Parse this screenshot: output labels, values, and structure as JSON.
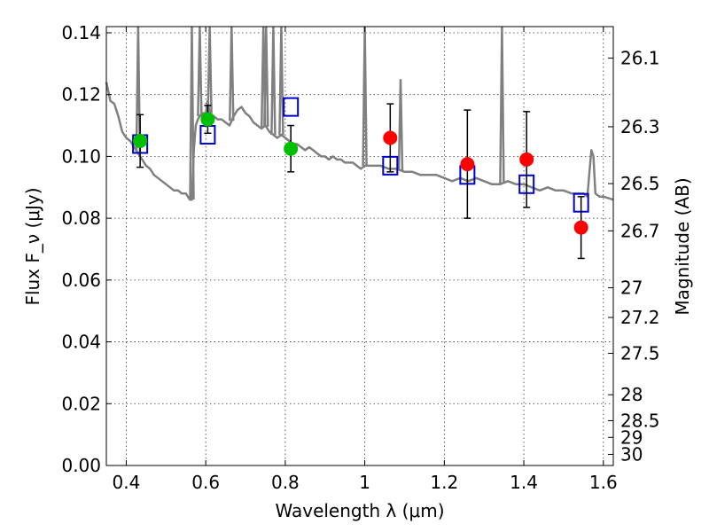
{
  "chart_data": {
    "type": "scatter",
    "xlabel": "Wavelength λ (μm)",
    "ylabel": "Flux F_ν (μJy)",
    "y2label": "Magnitude (AB)",
    "xlim": [
      0.35,
      1.625
    ],
    "ylim": [
      0.0,
      0.142
    ],
    "grid": true,
    "x_ticks": [
      0.4,
      0.6,
      0.8,
      1.0,
      1.2,
      1.4,
      1.6
    ],
    "x_tick_labels": [
      "0.4",
      "0.6",
      "0.8",
      "1",
      "1.2",
      "1.4",
      "1.6"
    ],
    "y_ticks": [
      0.0,
      0.02,
      0.04,
      0.06,
      0.08,
      0.1,
      0.12,
      0.14
    ],
    "y_tick_labels": [
      "0.00",
      "0.02",
      "0.04",
      "0.06",
      "0.08",
      "0.10",
      "0.12",
      "0.14"
    ],
    "mag_ticks": [
      {
        "label": "26.1",
        "flux": 0.1318
      },
      {
        "label": "26.3",
        "flux": 0.1096
      },
      {
        "label": "26.5",
        "flux": 0.0912
      },
      {
        "label": "26.7",
        "flux": 0.0759
      },
      {
        "label": "27",
        "flux": 0.0575
      },
      {
        "label": "27.2",
        "flux": 0.0479
      },
      {
        "label": "27.5",
        "flux": 0.0363
      },
      {
        "label": "28",
        "flux": 0.0229
      },
      {
        "label": "28.5",
        "flux": 0.0145
      },
      {
        "label": "29",
        "flux": 0.0091
      },
      {
        "label": "30",
        "flux": 0.0036
      }
    ],
    "colors": {
      "model": "#808080",
      "green": "#00bf00",
      "red": "#ff0000",
      "box": "#0000cc",
      "errorbar": "#000000"
    },
    "series": [
      {
        "kind": "model-spectrum",
        "points": [
          [
            0.35,
            0.124
          ],
          [
            0.36,
            0.118
          ],
          [
            0.37,
            0.117
          ],
          [
            0.38,
            0.113
          ],
          [
            0.39,
            0.108
          ],
          [
            0.4,
            0.106
          ],
          [
            0.41,
            0.105
          ],
          [
            0.42,
            0.103
          ],
          [
            0.43,
            0.101
          ],
          [
            0.44,
            0.099
          ],
          [
            0.45,
            0.097
          ],
          [
            0.46,
            0.096
          ],
          [
            0.47,
            0.094
          ],
          [
            0.48,
            0.093
          ],
          [
            0.49,
            0.092
          ],
          [
            0.5,
            0.091
          ],
          [
            0.51,
            0.09
          ],
          [
            0.52,
            0.089
          ],
          [
            0.53,
            0.089
          ],
          [
            0.54,
            0.088
          ],
          [
            0.55,
            0.088
          ],
          [
            0.56,
            0.086
          ],
          [
            0.565,
            0.086
          ],
          [
            0.57,
            0.102
          ],
          [
            0.575,
            0.11
          ],
          [
            0.58,
            0.112
          ],
          [
            0.59,
            0.114
          ],
          [
            0.6,
            0.114
          ],
          [
            0.605,
            0.118
          ],
          [
            0.61,
            0.114
          ],
          [
            0.62,
            0.113
          ],
          [
            0.63,
            0.112
          ],
          [
            0.64,
            0.112
          ],
          [
            0.65,
            0.111
          ],
          [
            0.66,
            0.11
          ],
          [
            0.67,
            0.113
          ],
          [
            0.68,
            0.115
          ],
          [
            0.69,
            0.116
          ],
          [
            0.7,
            0.114
          ],
          [
            0.71,
            0.113
          ],
          [
            0.72,
            0.111
          ],
          [
            0.73,
            0.11
          ],
          [
            0.74,
            0.109
          ],
          [
            0.75,
            0.11
          ],
          [
            0.76,
            0.108
          ],
          [
            0.77,
            0.107
          ],
          [
            0.78,
            0.106
          ],
          [
            0.79,
            0.107
          ],
          [
            0.8,
            0.106
          ],
          [
            0.81,
            0.105
          ],
          [
            0.82,
            0.104
          ],
          [
            0.83,
            0.104
          ],
          [
            0.84,
            0.103
          ],
          [
            0.85,
            0.102
          ],
          [
            0.86,
            0.103
          ],
          [
            0.87,
            0.102
          ],
          [
            0.88,
            0.101
          ],
          [
            0.89,
            0.1
          ],
          [
            0.9,
            0.1
          ],
          [
            0.91,
            0.099
          ],
          [
            0.92,
            0.1
          ],
          [
            0.93,
            0.099
          ],
          [
            0.94,
            0.099
          ],
          [
            0.95,
            0.098
          ],
          [
            0.96,
            0.098
          ],
          [
            0.97,
            0.098
          ],
          [
            0.98,
            0.097
          ],
          [
            0.99,
            0.096
          ],
          [
            1.0,
            0.097
          ],
          [
            1.02,
            0.097
          ],
          [
            1.04,
            0.097
          ],
          [
            1.06,
            0.096
          ],
          [
            1.08,
            0.096
          ],
          [
            1.1,
            0.095
          ],
          [
            1.12,
            0.095
          ],
          [
            1.14,
            0.094
          ],
          [
            1.16,
            0.094
          ],
          [
            1.18,
            0.094
          ],
          [
            1.2,
            0.093
          ],
          [
            1.22,
            0.092
          ],
          [
            1.24,
            0.093
          ],
          [
            1.26,
            0.092
          ],
          [
            1.28,
            0.093
          ],
          [
            1.3,
            0.092
          ],
          [
            1.32,
            0.091
          ],
          [
            1.34,
            0.091
          ],
          [
            1.36,
            0.092
          ],
          [
            1.38,
            0.091
          ],
          [
            1.4,
            0.091
          ],
          [
            1.42,
            0.09
          ],
          [
            1.44,
            0.089
          ],
          [
            1.46,
            0.09
          ],
          [
            1.48,
            0.089
          ],
          [
            1.5,
            0.089
          ],
          [
            1.52,
            0.088
          ],
          [
            1.54,
            0.088
          ],
          [
            1.55,
            0.088
          ],
          [
            1.56,
            0.087
          ],
          [
            1.565,
            0.095
          ],
          [
            1.57,
            0.102
          ],
          [
            1.575,
            0.1
          ],
          [
            1.58,
            0.088
          ],
          [
            1.59,
            0.087
          ],
          [
            1.6,
            0.087
          ],
          [
            1.625,
            0.086
          ]
        ],
        "spikes": [
          {
            "x": 0.43,
            "top": 0.142
          },
          {
            "x": 0.565,
            "top": 0.142
          },
          {
            "x": 0.585,
            "top": 0.142
          },
          {
            "x": 0.61,
            "top": 0.142
          },
          {
            "x": 0.665,
            "top": 0.142
          },
          {
            "x": 0.745,
            "top": 0.142
          },
          {
            "x": 0.752,
            "top": 0.142
          },
          {
            "x": 0.77,
            "top": 0.142
          },
          {
            "x": 0.79,
            "top": 0.142
          },
          {
            "x": 1.0,
            "top": 0.142
          },
          {
            "x": 1.09,
            "top": 0.125
          },
          {
            "x": 1.345,
            "top": 0.142
          }
        ]
      },
      {
        "kind": "observed-green",
        "points": [
          {
            "x": 0.435,
            "y": 0.105,
            "err": 0.0085
          },
          {
            "x": 0.605,
            "y": 0.112,
            "err": 0.0045
          },
          {
            "x": 0.814,
            "y": 0.1025,
            "err": 0.0075
          }
        ]
      },
      {
        "kind": "observed-red",
        "points": [
          {
            "x": 1.064,
            "y": 0.106,
            "err": 0.011
          },
          {
            "x": 1.258,
            "y": 0.0975,
            "err": 0.0175
          },
          {
            "x": 1.407,
            "y": 0.099,
            "err": 0.0155
          },
          {
            "x": 1.544,
            "y": 0.077,
            "err": 0.01
          }
        ]
      },
      {
        "kind": "model-bandpass",
        "points": [
          {
            "x": 0.435,
            "y": 0.104
          },
          {
            "x": 0.605,
            "y": 0.107
          },
          {
            "x": 0.814,
            "y": 0.116
          },
          {
            "x": 1.064,
            "y": 0.097
          },
          {
            "x": 1.258,
            "y": 0.094
          },
          {
            "x": 1.407,
            "y": 0.091
          },
          {
            "x": 1.544,
            "y": 0.085
          }
        ]
      }
    ]
  }
}
